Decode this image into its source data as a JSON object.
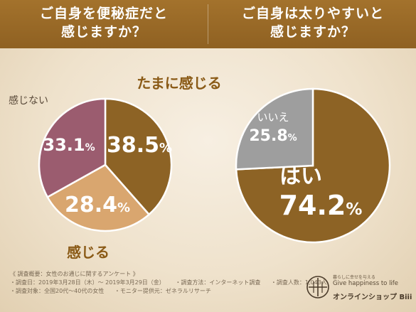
{
  "header": {
    "left_title_line1": "ご自身を便秘症だと",
    "left_title_line2": "感じますか？",
    "right_title_line1": "ご自身は太りやすいと",
    "right_title_line2": "感じますか？"
  },
  "chart_data": [
    {
      "type": "pie",
      "title": "ご自身を便秘症だと感じますか？",
      "slices": [
        {
          "label": "たまに感じる",
          "value": 38.5,
          "display": "38.5",
          "unit": "%",
          "color": "#8d6325"
        },
        {
          "label": "感じる",
          "value": 28.4,
          "display": "28.4",
          "unit": "%",
          "color": "#d9a66f"
        },
        {
          "label": "感じない",
          "value": 33.1,
          "display": "33.1",
          "unit": "%",
          "color": "#9b5c6f"
        }
      ]
    },
    {
      "type": "pie",
      "title": "ご自身は太りやすいと感じますか？",
      "slices": [
        {
          "label": "はい",
          "value": 74.2,
          "display": "74.2",
          "unit": "%",
          "color": "#8d6325"
        },
        {
          "label": "いいえ",
          "value": 25.8,
          "display": "25.8",
          "unit": "%",
          "color": "#9e9e9e"
        }
      ]
    }
  ],
  "footer": {
    "summary": "《 調査概要：女性のお通じに関するアンケート 》",
    "period": "・調査日：2019年3月28日（木）～ 2019年3月29日（金）",
    "method": "・調査方法：インターネット調査",
    "count": "・調査人数：1,043人",
    "target": "・調査対象：全国20代～40代の女性",
    "monitor": "・モニター提供元：ゼネラルリサーチ"
  },
  "brand": {
    "small": "暮らしに幸せを与える",
    "tagline": "Give happiness to life",
    "shop": "オンラインショップ Biii"
  },
  "icons": {
    "brand_logo": "biii-logo-icon"
  }
}
